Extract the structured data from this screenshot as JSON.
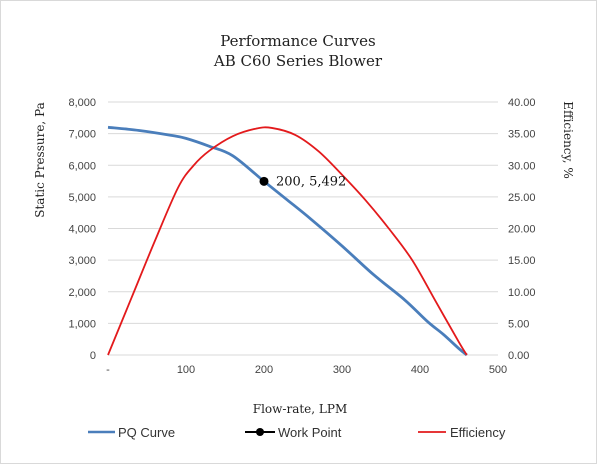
{
  "chart_data": {
    "type": "line",
    "title": [
      "Performance Curves",
      "AB C60 Series Blower"
    ],
    "xlabel": "Flow-rate, LPM",
    "ylabel": "Static Pressure, Pa",
    "y2label": "Efficiency, %",
    "xlim": [
      0,
      500
    ],
    "ylim": [
      0,
      8000
    ],
    "y2lim": [
      0,
      40
    ],
    "x_ticks": [
      0,
      100,
      200,
      300,
      400,
      500
    ],
    "x_tick_labels": [
      "-",
      "100",
      "200",
      "300",
      "400",
      "500"
    ],
    "y_ticks": [
      0,
      1000,
      2000,
      3000,
      4000,
      5000,
      6000,
      7000,
      8000
    ],
    "y_tick_labels": [
      "0",
      "1,000",
      "2,000",
      "3,000",
      "4,000",
      "5,000",
      "6,000",
      "7,000",
      "8,000"
    ],
    "y2_ticks": [
      0,
      5,
      10,
      15,
      20,
      25,
      30,
      35,
      40
    ],
    "y2_tick_labels": [
      "0.00",
      "5.00",
      "10.00",
      "15.00",
      "20.00",
      "25.00",
      "30.00",
      "35.00",
      "40.00"
    ],
    "grid": true,
    "legend_position": "bottom",
    "series": [
      {
        "name": "PQ Curve",
        "axis": "left",
        "color": "#4a7ebb",
        "x": [
          0,
          40,
          80,
          100,
          130,
          160,
          200,
          230,
          260,
          300,
          340,
          380,
          410,
          430,
          450,
          460
        ],
        "y": [
          7200,
          7100,
          6950,
          6850,
          6600,
          6300,
          5492,
          4900,
          4300,
          3450,
          2550,
          1750,
          1050,
          650,
          200,
          0
        ]
      },
      {
        "name": "Work Point",
        "axis": "left",
        "color": "#000000",
        "marker": "circle",
        "x": [
          200
        ],
        "y": [
          5492
        ]
      },
      {
        "name": "Efficiency",
        "axis": "right",
        "color": "#e31a1c",
        "x": [
          0,
          30,
          60,
          90,
          110,
          130,
          160,
          190,
          210,
          240,
          270,
          300,
          330,
          360,
          390,
          420,
          450,
          460
        ],
        "y": [
          0,
          9,
          18,
          26.5,
          30,
          32.3,
          34.6,
          35.8,
          35.9,
          34.8,
          32.2,
          28.5,
          24.5,
          20,
          15,
          8.5,
          2,
          0
        ]
      }
    ],
    "annotation": {
      "text": "200, 5,492",
      "x": 200,
      "y": 5492
    }
  }
}
